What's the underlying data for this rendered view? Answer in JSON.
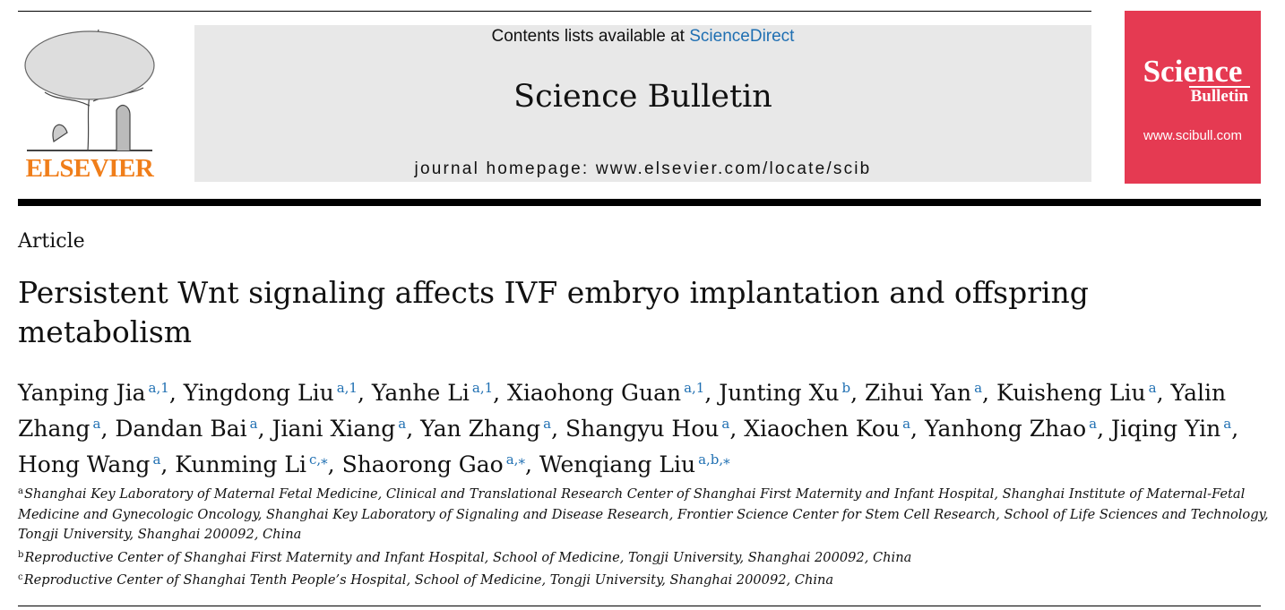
{
  "header": {
    "contents_prefix": "Contents lists available at",
    "contents_link": "ScienceDirect",
    "journal": "Science Bulletin",
    "homepage": "journal homepage: www.elsevier.com/locate/scib",
    "publisher": "ELSEVIER",
    "cover_title": [
      "Science",
      "Bulletin"
    ],
    "cover_url": "www.scibull.com"
  },
  "article_type": "Article",
  "title": "Persistent Wnt signaling affects IVF embryo implantation and offspring metabolism",
  "authors": [
    {
      "name": "Yanping Jia",
      "affil": "a,1"
    },
    {
      "name": "Yingdong Liu",
      "affil": "a,1"
    },
    {
      "name": "Yanhe Li",
      "affil": "a,1"
    },
    {
      "name": "Xiaohong Guan",
      "affil": "a,1"
    },
    {
      "name": "Junting Xu",
      "affil": "b"
    },
    {
      "name": "Zihui Yan",
      "affil": "a"
    },
    {
      "name": "Kuisheng Liu",
      "affil": "a"
    },
    {
      "name": "Yalin Zhang",
      "affil": "a"
    },
    {
      "name": "Dandan Bai",
      "affil": "a"
    },
    {
      "name": "Jiani Xiang",
      "affil": "a"
    },
    {
      "name": "Yan Zhang",
      "affil": "a"
    },
    {
      "name": "Shangyu Hou",
      "affil": "a"
    },
    {
      "name": "Xiaochen Kou",
      "affil": "a"
    },
    {
      "name": "Yanhong Zhao",
      "affil": "a"
    },
    {
      "name": "Jiqing Yin",
      "affil": "a"
    },
    {
      "name": "Hong Wang",
      "affil": "a"
    },
    {
      "name": "Kunming Li",
      "affil": "c,⁎"
    },
    {
      "name": "Shaorong Gao",
      "affil": "a,⁎"
    },
    {
      "name": "Wenqiang Liu",
      "affil": "a,b,⁎"
    }
  ],
  "affiliations": [
    {
      "label": "a",
      "text": "Shanghai Key Laboratory of Maternal Fetal Medicine, Clinical and Translational Research Center of Shanghai First Maternity and Infant Hospital, Shanghai Institute of Maternal-Fetal Medicine and Gynecologic Oncology, Shanghai Key Laboratory of Signaling and Disease Research, Frontier Science Center for Stem Cell Research, School of Life Sciences and Technology, Tongji University, Shanghai 200092, China"
    },
    {
      "label": "b",
      "text": "Reproductive Center of Shanghai First Maternity and Infant Hospital, School of Medicine, Tongji University, Shanghai 200092, China"
    },
    {
      "label": "c",
      "text": "Reproductive Center of Shanghai Tenth People’s Hospital, School of Medicine, Tongji University, Shanghai 200092, China"
    }
  ]
}
